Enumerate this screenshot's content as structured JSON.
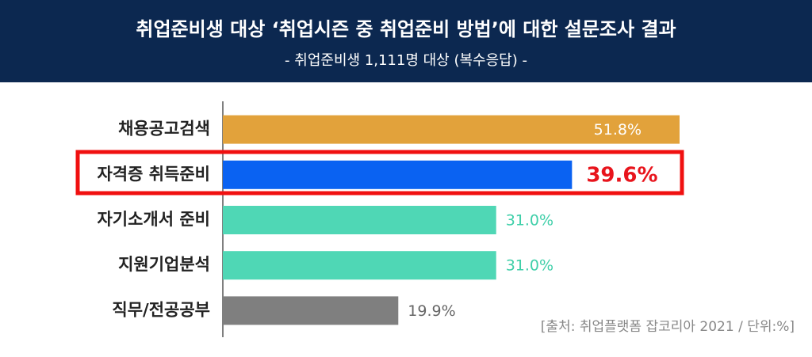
{
  "chart_data": {
    "type": "hbar",
    "title": "취업준비생 대상 ‘취업시즌 중 취업준비 방법’에 대한 설문조사 결과",
    "subtitle": "- 취업준비생 1,111명 대상 (복수응답) -",
    "categories": [
      "채용공고검색",
      "자격증 취득준비",
      "자기소개서 준비",
      "지원기업분석",
      "직무/전공공부"
    ],
    "values": [
      51.8,
      39.6,
      31.0,
      31.0,
      19.9
    ],
    "value_labels": [
      "51.8%",
      "39.6%",
      "31.0%",
      "31.0%",
      "19.9%"
    ],
    "colors": [
      "#e2a23b",
      "#0a62f2",
      "#4fd7b5",
      "#4fd7b5",
      "#7f7f7f"
    ],
    "label_colors": [
      "#ffffff",
      "#e8141c",
      "#3fcfa9",
      "#3fcfa9",
      "#666666"
    ],
    "label_positions": [
      "inside",
      "outside",
      "outside",
      "outside",
      "outside"
    ],
    "source": "[출처: 취업플랫폼 잡코리아 2021 / 단위:%]"
  }
}
